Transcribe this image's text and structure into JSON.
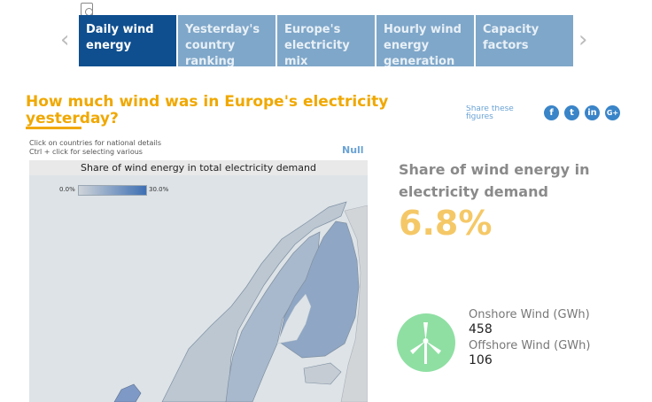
{
  "tabs": [
    {
      "label": "Daily wind energy"
    },
    {
      "label": "Yesterday's country ranking"
    },
    {
      "label": "Europe's electricity mix"
    },
    {
      "label": "Hourly wind energy generation"
    },
    {
      "label": "Capacity factors"
    }
  ],
  "nav": {
    "prev_symbol": "‹",
    "next_symbol": "›"
  },
  "headline": "How much wind was in Europe's electricity yesterday?",
  "share": {
    "label": "Share these figures",
    "icons": [
      "facebook-icon",
      "twitter-icon",
      "linkedin-icon",
      "google-plus-icon"
    ],
    "glyphs": [
      "f",
      "t",
      "in",
      "G+"
    ]
  },
  "map": {
    "hint_line1": "Click on countries for national details",
    "hint_line2": "Ctrl + click  for selecting various",
    "null_label": "Null",
    "title": "Share of wind energy in total electricity demand",
    "legend_min": "0.0%",
    "legend_max": "30.0%"
  },
  "metric": {
    "title": "Share of wind energy in electricity demand",
    "value": "6.8%"
  },
  "stats": {
    "onshore_label": "Onshore Wind (GWh)",
    "onshore_value": "458",
    "offshore_label": "Offshore Wind (GWh)",
    "offshore_value": "106"
  },
  "colors": {
    "accent_orange": "#f0a800",
    "tab_active": "#0f4f8f",
    "tab_inactive": "#7fa7c9",
    "metric_value": "#f5c867",
    "turbine_bg": "#8fdfa3"
  }
}
